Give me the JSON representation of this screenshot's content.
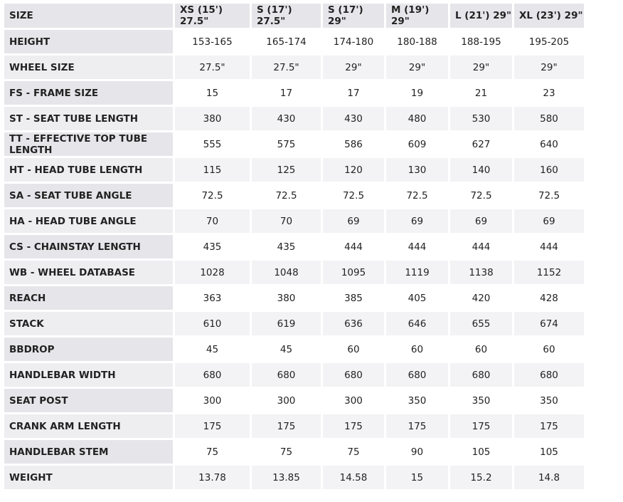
{
  "table": {
    "header": [
      "SIZE",
      "XS (15') 27.5\"",
      "S (17') 27.5\"",
      "S (17') 29\"",
      "M (19') 29\"",
      "L (21') 29\"",
      "XL (23') 29\""
    ],
    "rows": [
      [
        "HEIGHT",
        "153-165",
        "165-174",
        "174-180",
        "180-188",
        "188-195",
        "195-205"
      ],
      [
        "WHEEL SIZE",
        "27.5\"",
        "27.5\"",
        "29\"",
        "29\"",
        "29\"",
        "29\""
      ],
      [
        "FS - FRAME SIZE",
        "15",
        "17",
        "17",
        "19",
        "21",
        "23"
      ],
      [
        "ST - SEAT TUBE LENGTH",
        "380",
        "430",
        "430",
        "480",
        "530",
        "580"
      ],
      [
        "TT - EFFECTIVE TOP TUBE LENGTH",
        "555",
        "575",
        "586",
        "609",
        "627",
        "640"
      ],
      [
        "HT - HEAD TUBE LENGTH",
        "115",
        "125",
        "120",
        "130",
        "140",
        "160"
      ],
      [
        "SA - SEAT TUBE ANGLE",
        "72.5",
        "72.5",
        "72.5",
        "72.5",
        "72.5",
        "72.5"
      ],
      [
        "HA - HEAD TUBE ANGLE",
        "70",
        "70",
        "69",
        "69",
        "69",
        "69"
      ],
      [
        "CS - CHAINSTAY LENGTH",
        "435",
        "435",
        "444",
        "444",
        "444",
        "444"
      ],
      [
        "WB - WHEEL DATABASE",
        "1028",
        "1048",
        "1095",
        "1119",
        "1138",
        "1152"
      ],
      [
        "REACH",
        "363",
        "380",
        "385",
        "405",
        "420",
        "428"
      ],
      [
        "STACK",
        "610",
        "619",
        "636",
        "646",
        "655",
        "674"
      ],
      [
        "BBDROP",
        "45",
        "45",
        "60",
        "60",
        "60",
        "60"
      ],
      [
        "HANDLEBAR WIDTH",
        "680",
        "680",
        "680",
        "680",
        "680",
        "680"
      ],
      [
        "SEAT POST",
        "300",
        "300",
        "300",
        "350",
        "350",
        "350"
      ],
      [
        "CRANK ARM LENGTH",
        "175",
        "175",
        "175",
        "175",
        "175",
        "175"
      ],
      [
        "HANDLEBAR STEM",
        "75",
        "75",
        "75",
        "90",
        "105",
        "105"
      ],
      [
        "WEIGHT",
        "13.78",
        "13.85",
        "14.58",
        "15",
        "15.2",
        "14.8"
      ]
    ]
  }
}
